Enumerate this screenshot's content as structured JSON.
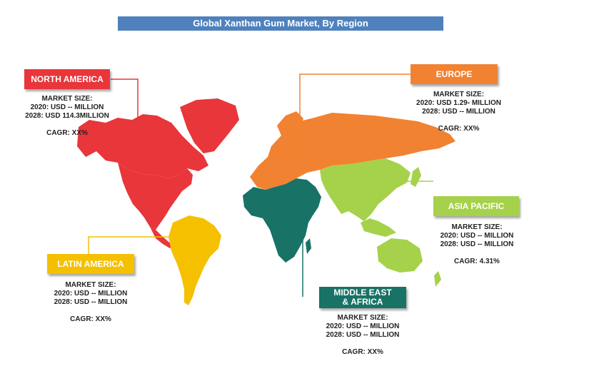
{
  "title": "Global Xanthan Gum Market, By Region",
  "colors": {
    "north_america": "#e8363a",
    "europe": "#f18231",
    "asia_pacific": "#a6d14a",
    "latin_america": "#f5c000",
    "middle_east_africa": "#187265",
    "title_bar": "#4f81bd"
  },
  "regions": {
    "north_america": {
      "name": "NORTH AMERICA",
      "market_size_label": "MARKET SIZE:",
      "size_2020": "2020: USD -- MILLION",
      "size_2028": "2028: USD 114.3MILLION",
      "cagr": "CAGR: XX%"
    },
    "europe": {
      "name": "EUROPE",
      "market_size_label": "MARKET SIZE:",
      "size_2020": "2020: USD 1.29- MILLION",
      "size_2028": "2028: USD -- MILLION",
      "cagr": "CAGR: XX%"
    },
    "asia_pacific": {
      "name": "ASIA PACIFIC",
      "market_size_label": "MARKET SIZE:",
      "size_2020": "2020: USD -- MILLION",
      "size_2028": "2028: USD -- MILLION",
      "cagr": "CAGR: 4.31%"
    },
    "latin_america": {
      "name": "LATIN AMERICA",
      "market_size_label": "MARKET SIZE:",
      "size_2020": "2020: USD -- MILLION",
      "size_2028": "2028: USD -- MILLION",
      "cagr": "CAGR: XX%"
    },
    "middle_east_africa": {
      "name_line1": "MIDDLE EAST",
      "name_line2": "& AFRICA",
      "market_size_label": "MARKET SIZE:",
      "size_2020": "2020: USD -- MILLION",
      "size_2028": "2028: USD -- MILLION",
      "cagr": "CAGR: XX%"
    }
  }
}
